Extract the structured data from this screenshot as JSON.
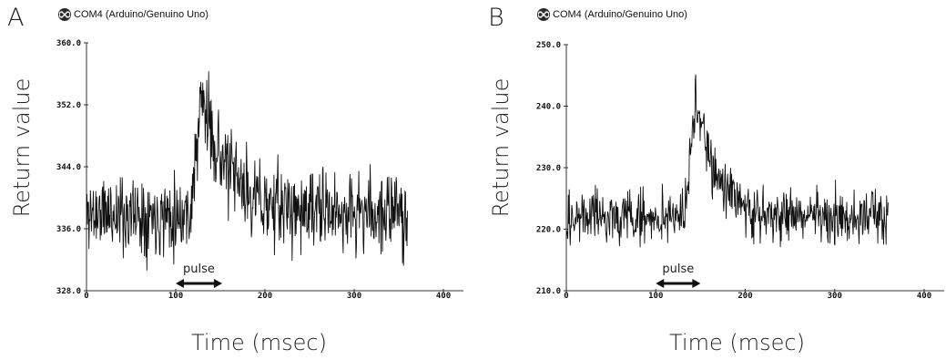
{
  "figure": {
    "xlabel": "Time (msec)",
    "ylabel": "Return value"
  },
  "chart_data": [
    {
      "type": "line",
      "panel_label": "A",
      "window_title": "COM4 (Arduino/Genuino Uno)",
      "xlabel": "Time (msec)",
      "ylabel": "Return value",
      "xlim": [
        0,
        400
      ],
      "ylim": [
        328.0,
        360.0
      ],
      "xticks": [
        0,
        100,
        200,
        300,
        400
      ],
      "yticks": [
        328.0,
        336.0,
        344.0,
        352.0,
        360.0
      ],
      "ytick_labels": [
        "328.0",
        "336.0",
        "344.0",
        "352.0",
        "360.0"
      ],
      "x_range": [
        0,
        360
      ],
      "baseline": 338,
      "noise": 2.6,
      "pulse": {
        "label": "pulse",
        "start": 100,
        "end": 152
      },
      "events": [
        {
          "x": 128,
          "peak": 353.5,
          "decay_ms": 30
        }
      ],
      "grid": false,
      "legend": "none"
    },
    {
      "type": "line",
      "panel_label": "B",
      "window_title": "COM4 (Arduino/Genuino Uno)",
      "xlabel": "Time (msec)",
      "ylabel": "Return value",
      "xlim": [
        0,
        400
      ],
      "ylim": [
        210.0,
        250.0
      ],
      "xticks": [
        0,
        100,
        200,
        300,
        400
      ],
      "yticks": [
        210.0,
        220.0,
        230.0,
        240.0,
        250.0
      ],
      "ytick_labels": [
        "210.0",
        "220.0",
        "230.0",
        "240.0",
        "250.0"
      ],
      "x_range": [
        0,
        360
      ],
      "baseline": 222,
      "noise": 2.2,
      "pulse": {
        "label": "pulse",
        "start": 100,
        "end": 150
      },
      "events": [
        {
          "x": 144,
          "peak": 242.0,
          "decay_ms": 22
        }
      ],
      "grid": false,
      "legend": "none"
    }
  ]
}
